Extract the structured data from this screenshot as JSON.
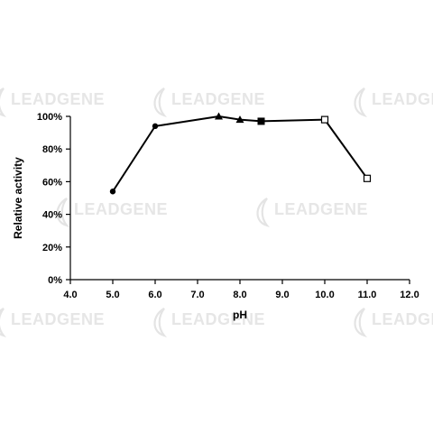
{
  "watermark": {
    "text": "LEADGENE"
  },
  "chart_data": {
    "type": "line",
    "xlabel": "pH",
    "ylabel": "Relative activity",
    "xlim": [
      4.0,
      12.0
    ],
    "ylim": [
      0,
      100
    ],
    "x_ticks": [
      4.0,
      5.0,
      6.0,
      7.0,
      8.0,
      9.0,
      10.0,
      11.0,
      12.0
    ],
    "x_tick_labels": [
      "4.0",
      "5.0",
      "6.0",
      "7.0",
      "8.0",
      "9.0",
      "10.0",
      "11.0",
      "12.0"
    ],
    "y_ticks": [
      0,
      20,
      40,
      60,
      80,
      100
    ],
    "y_tick_labels": [
      "0%",
      "20%",
      "40%",
      "60%",
      "80%",
      "100%"
    ],
    "grid": false,
    "legend": "none",
    "line_color": "#000000",
    "series": [
      {
        "marker": "circle",
        "points": [
          [
            5.0,
            54
          ],
          [
            6.0,
            94
          ]
        ]
      },
      {
        "marker": "triangle",
        "points": [
          [
            6.0,
            94
          ],
          [
            7.5,
            100
          ],
          [
            8.0,
            98
          ]
        ]
      },
      {
        "marker": "square-filled",
        "points": [
          [
            8.0,
            98
          ],
          [
            8.5,
            97
          ]
        ]
      },
      {
        "marker": "square-open",
        "points": [
          [
            8.5,
            97
          ],
          [
            10.0,
            98
          ],
          [
            11.0,
            62
          ]
        ]
      }
    ],
    "path": [
      [
        5.0,
        54
      ],
      [
        6.0,
        94
      ],
      [
        7.5,
        100
      ],
      [
        8.0,
        98
      ],
      [
        8.5,
        97
      ],
      [
        10.0,
        98
      ],
      [
        11.0,
        62
      ]
    ]
  }
}
